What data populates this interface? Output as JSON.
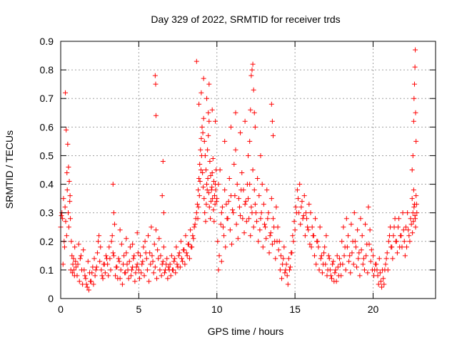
{
  "chart_data": {
    "type": "scatter",
    "title": "Day 329 of 2022, SRMTID for receiver trds",
    "xlabel": "GPS time / hours",
    "ylabel": "SRMTID / TECUs",
    "xlim": [
      0,
      24
    ],
    "ylim": [
      0,
      0.9
    ],
    "xticks": [
      0,
      5,
      10,
      15,
      20
    ],
    "xtick_labels": [
      "0",
      "5",
      "10",
      "15",
      "20"
    ],
    "yticks": [
      0,
      0.1,
      0.2,
      0.3,
      0.4,
      0.5,
      0.6,
      0.7,
      0.8,
      0.9
    ],
    "ytick_labels": [
      "0",
      "0.1",
      "0.2",
      "0.3",
      "0.4",
      "0.5",
      "0.6",
      "0.7",
      "0.8",
      "0.9"
    ],
    "grid": true,
    "marker": "+",
    "color": "#ff0000",
    "series": [
      {
        "name": "SRMTID",
        "x": [
          0.0,
          0.08,
          0.12,
          0.18,
          0.22,
          0.28,
          0.32,
          0.38,
          0.42,
          0.48,
          0.52,
          0.58,
          0.62,
          0.68,
          0.72,
          0.78,
          0.85,
          0.9,
          0.95,
          0.3,
          0.35,
          0.45,
          0.5,
          0.55,
          0.6,
          0.4,
          0.25,
          0.15,
          0.05,
          0.65,
          0.75,
          0.82,
          0.88,
          0.98,
          1.05,
          1.1,
          1.2,
          1.3,
          1.4,
          1.5,
          1.6,
          1.7,
          1.8,
          1.9,
          2.0,
          2.1,
          2.2,
          2.3,
          2.4,
          2.5,
          2.6,
          2.7,
          2.8,
          2.9,
          1.15,
          1.25,
          1.35,
          1.45,
          1.55,
          1.65,
          1.75,
          1.85,
          1.95,
          2.05,
          2.15,
          2.25,
          2.35,
          2.45,
          2.55,
          2.65,
          2.75,
          2.85,
          2.95,
          3.0,
          3.1,
          3.2,
          3.3,
          3.4,
          3.5,
          3.6,
          3.7,
          3.8,
          3.9,
          4.0,
          4.1,
          4.2,
          4.3,
          4.4,
          4.5,
          4.6,
          4.7,
          4.8,
          4.9,
          3.05,
          3.15,
          3.25,
          3.35,
          3.45,
          3.55,
          3.65,
          3.75,
          3.85,
          3.95,
          4.05,
          4.15,
          4.25,
          4.35,
          4.45,
          4.55,
          4.65,
          4.75,
          4.85,
          4.95,
          3.35,
          3.4,
          3.8,
          4.2,
          4.6,
          4.9,
          5.0,
          5.1,
          5.2,
          5.3,
          5.4,
          5.5,
          5.6,
          5.7,
          5.8,
          5.9,
          6.0,
          6.1,
          6.2,
          6.3,
          6.4,
          6.5,
          6.6,
          6.7,
          6.8,
          6.9,
          5.05,
          5.15,
          5.25,
          5.35,
          5.45,
          5.55,
          5.65,
          5.75,
          5.85,
          5.95,
          6.05,
          6.15,
          6.25,
          6.35,
          6.45,
          6.55,
          6.65,
          6.75,
          6.85,
          6.95,
          6.05,
          6.08,
          6.1,
          6.5,
          6.55,
          6.6,
          7.0,
          7.1,
          7.2,
          7.3,
          7.4,
          7.5,
          7.6,
          7.7,
          7.8,
          7.9,
          8.0,
          8.1,
          8.2,
          8.3,
          8.4,
          8.5,
          8.6,
          8.7,
          7.05,
          7.15,
          7.25,
          7.35,
          7.45,
          7.55,
          7.65,
          7.75,
          7.85,
          7.95,
          8.05,
          8.15,
          8.25,
          8.35,
          8.45,
          8.55,
          8.65,
          8.75,
          8.8,
          8.85,
          8.9,
          8.95,
          9.0,
          9.05,
          9.1,
          9.15,
          9.2,
          9.25,
          9.3,
          9.35,
          9.4,
          9.45,
          9.5,
          9.55,
          9.6,
          9.65,
          9.7,
          9.75,
          9.8,
          9.85,
          9.9,
          9.95,
          8.78,
          8.82,
          8.88,
          8.92,
          8.98,
          9.02,
          9.08,
          9.12,
          9.18,
          9.22,
          9.28,
          9.32,
          9.38,
          9.42,
          9.48,
          9.52,
          9.58,
          9.62,
          9.68,
          9.72,
          9.78,
          9.82,
          9.88,
          9.92,
          9.98,
          8.7,
          8.85,
          9.0,
          9.15,
          9.5,
          9.7,
          9.9,
          9.35,
          9.45,
          10.0,
          10.1,
          10.2,
          10.3,
          10.4,
          10.5,
          10.6,
          10.7,
          10.8,
          10.9,
          11.0,
          11.1,
          11.2,
          11.3,
          11.4,
          11.5,
          11.6,
          11.7,
          11.8,
          11.9,
          10.05,
          10.15,
          10.25,
          10.35,
          10.45,
          10.55,
          10.65,
          10.75,
          10.85,
          10.95,
          11.05,
          11.15,
          11.25,
          11.35,
          11.45,
          11.55,
          11.65,
          11.75,
          11.85,
          11.95,
          10.1,
          10.3,
          10.5,
          10.9,
          11.2,
          11.5,
          11.8,
          12.0,
          12.1,
          12.2,
          12.3,
          12.4,
          12.5,
          12.6,
          12.7,
          12.8,
          12.9,
          13.0,
          13.1,
          13.2,
          13.3,
          13.4,
          13.5,
          13.6,
          13.7,
          13.8,
          13.9,
          12.05,
          12.15,
          12.25,
          12.35,
          12.45,
          12.55,
          12.65,
          12.75,
          12.85,
          12.95,
          13.05,
          13.15,
          13.25,
          13.35,
          13.45,
          13.55,
          13.65,
          13.75,
          13.85,
          13.95,
          12.0,
          12.1,
          12.15,
          12.2,
          12.25,
          12.3,
          12.35,
          12.4,
          12.45,
          12.8,
          13.5,
          13.55,
          13.6,
          14.0,
          14.1,
          14.2,
          14.3,
          14.4,
          14.5,
          14.6,
          14.7,
          14.8,
          14.9,
          15.0,
          15.1,
          15.2,
          15.3,
          15.4,
          15.5,
          15.6,
          15.7,
          15.8,
          15.9,
          14.05,
          14.15,
          14.25,
          14.35,
          14.45,
          14.55,
          14.65,
          14.75,
          14.85,
          14.95,
          15.05,
          15.15,
          15.25,
          15.35,
          15.45,
          15.55,
          15.65,
          15.75,
          15.85,
          15.95,
          16.0,
          16.1,
          16.2,
          16.3,
          16.4,
          16.5,
          16.6,
          16.7,
          16.8,
          16.9,
          17.0,
          17.1,
          17.2,
          17.3,
          17.4,
          17.5,
          17.6,
          17.7,
          17.8,
          17.9,
          16.05,
          16.15,
          16.25,
          16.35,
          16.45,
          16.55,
          16.65,
          16.75,
          16.85,
          16.95,
          17.05,
          17.15,
          17.25,
          17.35,
          17.45,
          17.55,
          17.65,
          17.75,
          17.85,
          17.95,
          18.0,
          18.1,
          18.2,
          18.3,
          18.4,
          18.5,
          18.6,
          18.7,
          18.8,
          18.9,
          19.0,
          19.1,
          19.2,
          19.3,
          19.4,
          19.5,
          19.6,
          19.7,
          19.8,
          19.9,
          18.05,
          18.15,
          18.25,
          18.35,
          18.45,
          18.55,
          18.65,
          18.75,
          18.85,
          18.95,
          19.05,
          19.15,
          19.25,
          19.35,
          19.45,
          19.55,
          19.65,
          19.75,
          19.85,
          19.95,
          20.0,
          20.1,
          20.2,
          20.3,
          20.4,
          20.5,
          20.6,
          20.7,
          20.8,
          20.9,
          21.0,
          21.1,
          21.2,
          21.3,
          21.4,
          21.5,
          21.6,
          21.7,
          21.8,
          21.9,
          20.05,
          20.15,
          20.25,
          20.35,
          20.45,
          20.55,
          20.65,
          20.75,
          20.85,
          20.95,
          21.05,
          21.15,
          21.25,
          21.35,
          21.45,
          21.55,
          21.65,
          21.75,
          21.85,
          21.95,
          22.0,
          22.1,
          22.2,
          22.3,
          22.4,
          22.5,
          22.55,
          22.6,
          22.65,
          22.7,
          22.75,
          22.8,
          22.05,
          22.15,
          22.25,
          22.35,
          22.45,
          22.52,
          22.58,
          22.62,
          22.68,
          22.72,
          22.78,
          22.5,
          22.55,
          22.6,
          22.62,
          22.65,
          22.68,
          22.7,
          22.72,
          22.75
        ],
        "y": [
          0.25,
          0.3,
          0.28,
          0.35,
          0.2,
          0.32,
          0.27,
          0.22,
          0.38,
          0.3,
          0.25,
          0.34,
          0.28,
          0.2,
          0.15,
          0.12,
          0.1,
          0.18,
          0.13,
          0.72,
          0.59,
          0.54,
          0.46,
          0.41,
          0.36,
          0.44,
          0.18,
          0.12,
          0.29,
          0.1,
          0.09,
          0.14,
          0.08,
          0.11,
          0.08,
          0.12,
          0.06,
          0.15,
          0.05,
          0.1,
          0.07,
          0.04,
          0.03,
          0.06,
          0.09,
          0.05,
          0.08,
          0.11,
          0.2,
          0.13,
          0.1,
          0.07,
          0.12,
          0.15,
          0.19,
          0.14,
          0.1,
          0.17,
          0.08,
          0.05,
          0.13,
          0.09,
          0.06,
          0.11,
          0.14,
          0.1,
          0.16,
          0.22,
          0.18,
          0.08,
          0.12,
          0.09,
          0.14,
          0.12,
          0.18,
          0.1,
          0.22,
          0.15,
          0.08,
          0.11,
          0.14,
          0.07,
          0.19,
          0.12,
          0.09,
          0.16,
          0.1,
          0.13,
          0.08,
          0.11,
          0.15,
          0.09,
          0.12,
          0.08,
          0.14,
          0.2,
          0.16,
          0.26,
          0.11,
          0.07,
          0.13,
          0.1,
          0.05,
          0.15,
          0.09,
          0.12,
          0.07,
          0.18,
          0.1,
          0.14,
          0.06,
          0.11,
          0.16,
          0.4,
          0.3,
          0.24,
          0.21,
          0.19,
          0.23,
          0.1,
          0.15,
          0.12,
          0.18,
          0.2,
          0.14,
          0.22,
          0.16,
          0.25,
          0.13,
          0.19,
          0.24,
          0.17,
          0.21,
          0.15,
          0.12,
          0.18,
          0.1,
          0.14,
          0.11,
          0.07,
          0.09,
          0.13,
          0.08,
          0.16,
          0.1,
          0.06,
          0.12,
          0.15,
          0.09,
          0.11,
          0.07,
          0.14,
          0.1,
          0.08,
          0.13,
          0.09,
          0.12,
          0.07,
          0.1,
          0.78,
          0.75,
          0.64,
          0.36,
          0.48,
          0.3,
          0.12,
          0.15,
          0.1,
          0.14,
          0.18,
          0.11,
          0.16,
          0.2,
          0.13,
          0.17,
          0.22,
          0.15,
          0.19,
          0.24,
          0.18,
          0.21,
          0.26,
          0.3,
          0.08,
          0.1,
          0.13,
          0.09,
          0.12,
          0.15,
          0.11,
          0.14,
          0.17,
          0.12,
          0.16,
          0.19,
          0.14,
          0.18,
          0.22,
          0.25,
          0.28,
          0.33,
          0.38,
          0.42,
          0.47,
          0.52,
          0.56,
          0.6,
          0.58,
          0.63,
          0.55,
          0.5,
          0.45,
          0.4,
          0.52,
          0.57,
          0.62,
          0.48,
          0.43,
          0.38,
          0.44,
          0.49,
          0.41,
          0.36,
          0.4,
          0.45,
          0.28,
          0.32,
          0.36,
          0.41,
          0.45,
          0.5,
          0.44,
          0.39,
          0.35,
          0.3,
          0.27,
          0.33,
          0.38,
          0.42,
          0.37,
          0.32,
          0.28,
          0.34,
          0.39,
          0.35,
          0.31,
          0.27,
          0.33,
          0.38,
          0.34,
          0.83,
          0.68,
          0.72,
          0.77,
          0.75,
          0.66,
          0.62,
          0.7,
          0.65,
          0.35,
          0.4,
          0.45,
          0.3,
          0.25,
          0.38,
          0.33,
          0.28,
          0.42,
          0.36,
          0.31,
          0.47,
          0.52,
          0.4,
          0.35,
          0.29,
          0.44,
          0.38,
          0.33,
          0.27,
          0.2,
          0.15,
          0.26,
          0.32,
          0.22,
          0.18,
          0.28,
          0.34,
          0.24,
          0.19,
          0.3,
          0.36,
          0.26,
          0.21,
          0.32,
          0.38,
          0.28,
          0.23,
          0.34,
          0.4,
          0.1,
          0.13,
          0.55,
          0.6,
          0.65,
          0.58,
          0.62,
          0.35,
          0.4,
          0.32,
          0.45,
          0.38,
          0.3,
          0.42,
          0.36,
          0.28,
          0.4,
          0.33,
          0.25,
          0.38,
          0.3,
          0.22,
          0.35,
          0.28,
          0.2,
          0.32,
          0.25,
          0.28,
          0.22,
          0.3,
          0.25,
          0.33,
          0.27,
          0.2,
          0.24,
          0.3,
          0.18,
          0.26,
          0.21,
          0.28,
          0.16,
          0.23,
          0.19,
          0.25,
          0.14,
          0.2,
          0.17,
          0.5,
          0.55,
          0.66,
          0.78,
          0.8,
          0.82,
          0.73,
          0.65,
          0.6,
          0.5,
          0.68,
          0.62,
          0.57,
          0.2,
          0.15,
          0.12,
          0.18,
          0.1,
          0.08,
          0.14,
          0.11,
          0.16,
          0.2,
          0.24,
          0.3,
          0.35,
          0.4,
          0.32,
          0.28,
          0.36,
          0.3,
          0.25,
          0.33,
          0.1,
          0.07,
          0.14,
          0.09,
          0.12,
          0.05,
          0.1,
          0.16,
          0.22,
          0.27,
          0.32,
          0.38,
          0.3,
          0.26,
          0.34,
          0.29,
          0.22,
          0.28,
          0.24,
          0.19,
          0.3,
          0.25,
          0.22,
          0.28,
          0.2,
          0.18,
          0.25,
          0.15,
          0.12,
          0.18,
          0.22,
          0.1,
          0.14,
          0.08,
          0.12,
          0.06,
          0.1,
          0.15,
          0.08,
          0.12,
          0.18,
          0.22,
          0.15,
          0.12,
          0.2,
          0.1,
          0.14,
          0.09,
          0.16,
          0.12,
          0.08,
          0.15,
          0.1,
          0.07,
          0.13,
          0.09,
          0.06,
          0.11,
          0.14,
          0.08,
          0.2,
          0.25,
          0.18,
          0.28,
          0.22,
          0.15,
          0.26,
          0.2,
          0.3,
          0.18,
          0.24,
          0.16,
          0.28,
          0.22,
          0.14,
          0.26,
          0.19,
          0.32,
          0.24,
          0.17,
          0.12,
          0.15,
          0.1,
          0.18,
          0.13,
          0.09,
          0.16,
          0.12,
          0.2,
          0.11,
          0.14,
          0.08,
          0.17,
          0.12,
          0.1,
          0.15,
          0.09,
          0.19,
          0.13,
          0.1,
          0.15,
          0.1,
          0.12,
          0.08,
          0.14,
          0.06,
          0.1,
          0.05,
          0.12,
          0.16,
          0.2,
          0.25,
          0.18,
          0.22,
          0.28,
          0.2,
          0.25,
          0.18,
          0.22,
          0.3,
          0.08,
          0.12,
          0.1,
          0.05,
          0.09,
          0.04,
          0.07,
          0.1,
          0.14,
          0.1,
          0.22,
          0.18,
          0.14,
          0.25,
          0.2,
          0.16,
          0.28,
          0.22,
          0.18,
          0.24,
          0.2,
          0.25,
          0.3,
          0.22,
          0.28,
          0.35,
          0.3,
          0.38,
          0.33,
          0.28,
          0.36,
          0.3,
          0.15,
          0.18,
          0.24,
          0.2,
          0.26,
          0.23,
          0.27,
          0.32,
          0.29,
          0.25,
          0.33,
          0.45,
          0.5,
          0.62,
          0.7,
          0.75,
          0.81,
          0.87,
          0.65,
          0.55
        ]
      }
    ]
  }
}
